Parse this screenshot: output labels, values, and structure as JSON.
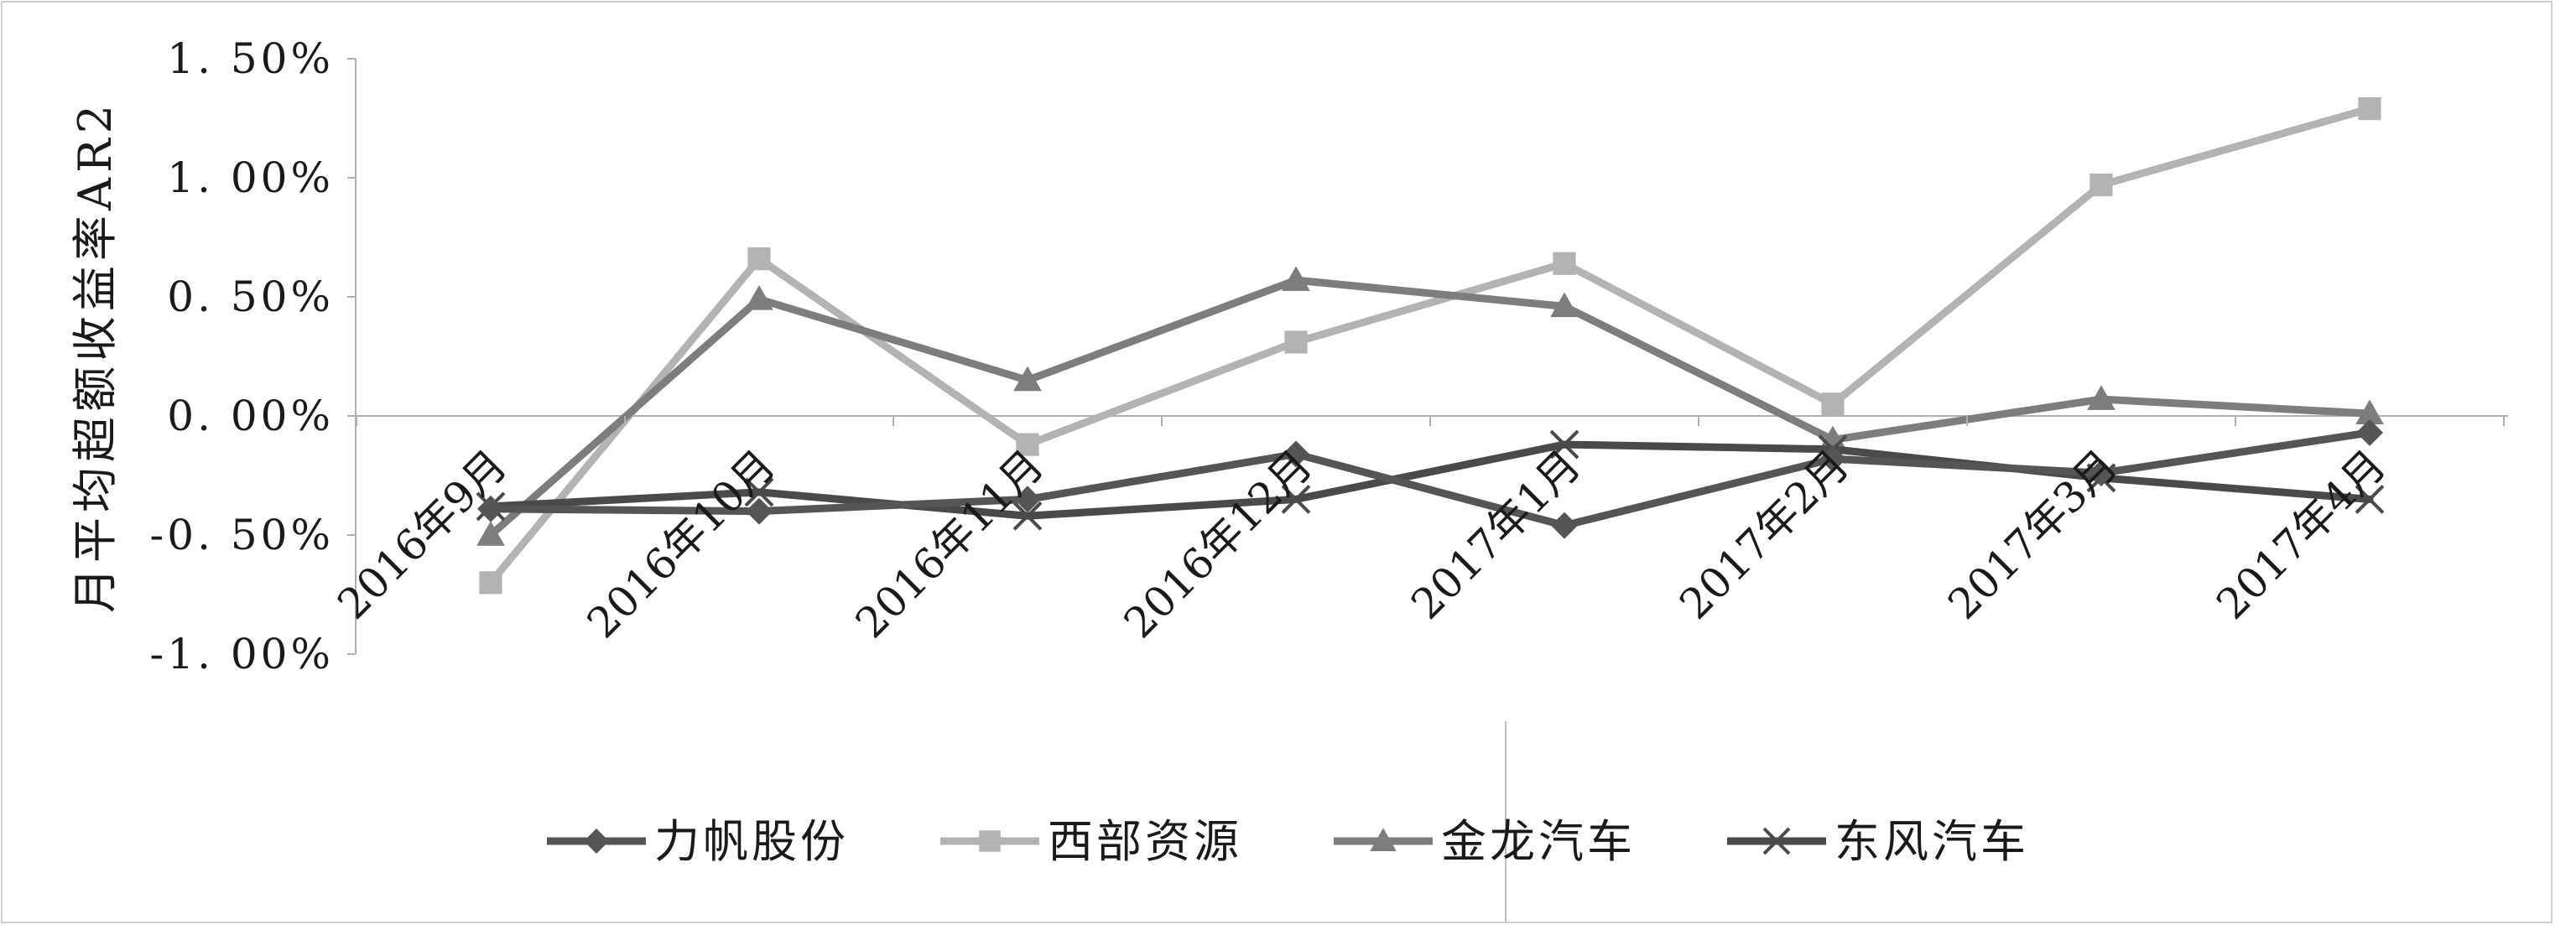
{
  "chart_data": {
    "type": "line",
    "title": "",
    "xlabel": "",
    "ylabel": "月平均超额收益率AR2",
    "categories": [
      "2016年9月",
      "2016年10月",
      "2016年11月",
      "2016年12月",
      "2017年1月",
      "2017年2月",
      "2017年3月",
      "2017年4月"
    ],
    "ylim": [
      -1.0,
      1.5
    ],
    "yticks": [
      1.5,
      1.0,
      0.5,
      0.0,
      -0.5,
      -1.0
    ],
    "ytick_labels": [
      "1. 50%",
      "1. 00%",
      "0. 50%",
      "0. 00%",
      "-0. 50%",
      "-1. 00%"
    ],
    "grid": false,
    "legend_position": "bottom",
    "series": [
      {
        "name": "力帆股份",
        "color": "#555555",
        "marker": "diamond",
        "values": [
          -0.39,
          -0.4,
          -0.35,
          -0.16,
          -0.46,
          -0.18,
          -0.24,
          -0.07
        ]
      },
      {
        "name": "西部资源",
        "color": "#b3b3b3",
        "marker": "square",
        "values": [
          -0.7,
          0.66,
          -0.12,
          0.31,
          0.64,
          0.05,
          0.97,
          1.29
        ]
      },
      {
        "name": "金龙汽车",
        "color": "#7d7d7d",
        "marker": "triangle",
        "values": [
          -0.5,
          0.49,
          0.15,
          0.57,
          0.46,
          -0.1,
          0.07,
          0.01
        ]
      },
      {
        "name": "东风汽车",
        "color": "#4a4a4a",
        "marker": "x",
        "values": [
          -0.38,
          -0.32,
          -0.42,
          -0.35,
          -0.12,
          -0.14,
          -0.26,
          -0.35
        ]
      }
    ]
  }
}
